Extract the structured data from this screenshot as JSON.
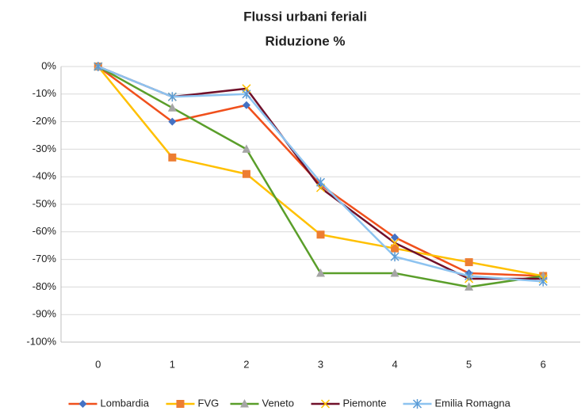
{
  "chart_data": {
    "type": "line",
    "title": "Flussi urbani feriali",
    "subtitle": "Riduzione %",
    "categories": [
      "0",
      "1",
      "2",
      "3",
      "4",
      "5",
      "6"
    ],
    "series": [
      {
        "name": "Lombardia",
        "color": "#f0501c",
        "marker_color": "#4472c4",
        "marker": "diamond",
        "values": [
          0,
          -20,
          -14,
          -43,
          -62,
          -75,
          -76
        ]
      },
      {
        "name": "FVG",
        "color": "#ffc000",
        "marker_color": "#ed7d31",
        "marker": "square",
        "values": [
          0,
          -33,
          -39,
          -61,
          -66,
          -71,
          -76
        ]
      },
      {
        "name": "Veneto",
        "color": "#5a9e2a",
        "marker_color": "#a5a5a5",
        "marker": "triangle",
        "values": [
          0,
          -15,
          -30,
          -75,
          -75,
          -80,
          -76
        ]
      },
      {
        "name": "Piemonte",
        "color": "#70102a",
        "marker_color": "#ffc000",
        "marker": "x",
        "values": [
          0,
          -11,
          -8,
          -44,
          -64,
          -77,
          -77
        ]
      },
      {
        "name": "Emilia Romagna",
        "color": "#8dc3f0",
        "marker_color": "#5b9bd5",
        "marker": "star",
        "values": [
          0,
          -11,
          -10,
          -42,
          -69,
          -76,
          -78
        ]
      }
    ],
    "ylim": [
      -100,
      0
    ],
    "yticks": [
      {
        "value": 0,
        "label": "0%"
      },
      {
        "value": -10,
        "label": "-10%"
      },
      {
        "value": -20,
        "label": "-20%"
      },
      {
        "value": -30,
        "label": "-30%"
      },
      {
        "value": -40,
        "label": "-40%"
      },
      {
        "value": -50,
        "label": "-50%"
      },
      {
        "value": -60,
        "label": "-60%"
      },
      {
        "value": -70,
        "label": "-70%"
      },
      {
        "value": -80,
        "label": "-80%"
      },
      {
        "value": -90,
        "label": "-90%"
      },
      {
        "value": -100,
        "label": "-100%"
      }
    ],
    "grid": true,
    "legend": "bottom"
  }
}
